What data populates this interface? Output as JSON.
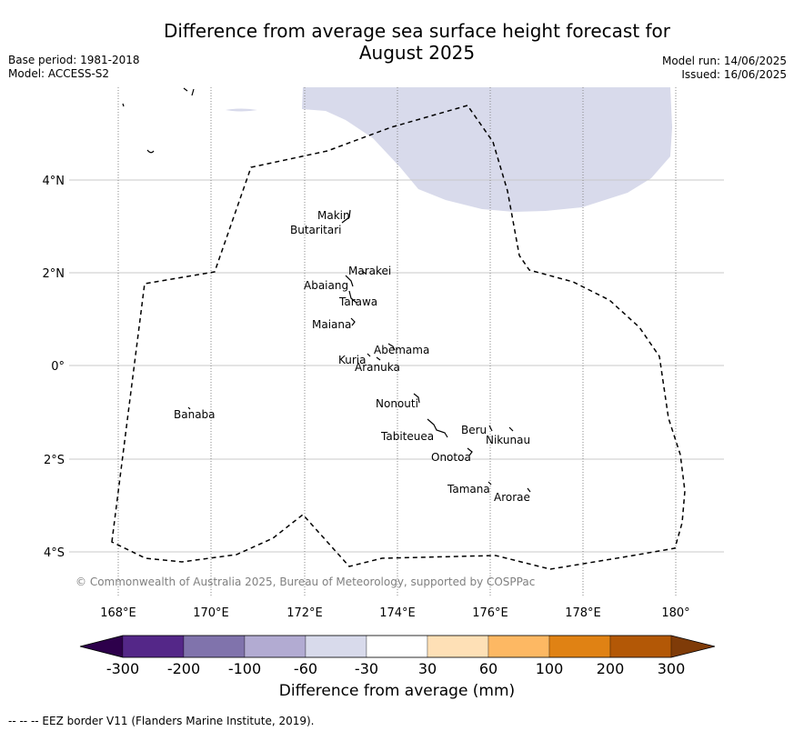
{
  "header": {
    "title_line1": "Difference from average sea surface height forecast for",
    "title_line2": "August 2025",
    "base_period": "Base period: 1981-2018",
    "model": "Model: ACCESS-S2",
    "model_run": "Model run: 14/06/2025",
    "issued": "Issued: 16/06/2025"
  },
  "map": {
    "lat_labels": [
      "4°N",
      "2°N",
      "0°",
      "2°S",
      "4°S"
    ],
    "lon_labels": [
      "168°E",
      "170°E",
      "172°E",
      "174°E",
      "176°E",
      "178°E",
      "180°"
    ],
    "copyright": "© Commonwealth of Australia 2025, Bureau of Meteorology, supported by COSPPac",
    "islands": [
      {
        "name": "Makin"
      },
      {
        "name": "Butaritari"
      },
      {
        "name": "Marakei"
      },
      {
        "name": "Abaiang"
      },
      {
        "name": "Tarawa"
      },
      {
        "name": "Maiana"
      },
      {
        "name": "Abemama"
      },
      {
        "name": "Kuria"
      },
      {
        "name": "Aranuka"
      },
      {
        "name": "Nonouti"
      },
      {
        "name": "Banaba"
      },
      {
        "name": "Beru"
      },
      {
        "name": "Tabiteuea"
      },
      {
        "name": "Nikunau"
      },
      {
        "name": "Onotoa"
      },
      {
        "name": "Tamana"
      },
      {
        "name": "Arorae"
      }
    ]
  },
  "colorbar": {
    "label": "Difference from average (mm)",
    "ticks": [
      "-300",
      "-200",
      "-100",
      "-60",
      "-30",
      "30",
      "60",
      "100",
      "200",
      "300"
    ],
    "colors": [
      "#2d004b",
      "#542788",
      "#8073ac",
      "#b2abd2",
      "#d8daeb",
      "#ffffff",
      "#fee0b6",
      "#fdb863",
      "#e08214",
      "#b35806",
      "#7f3b08"
    ]
  },
  "footer": "--  --  -- EEZ border V11 (Flanders Marine Institute, 2019)."
}
